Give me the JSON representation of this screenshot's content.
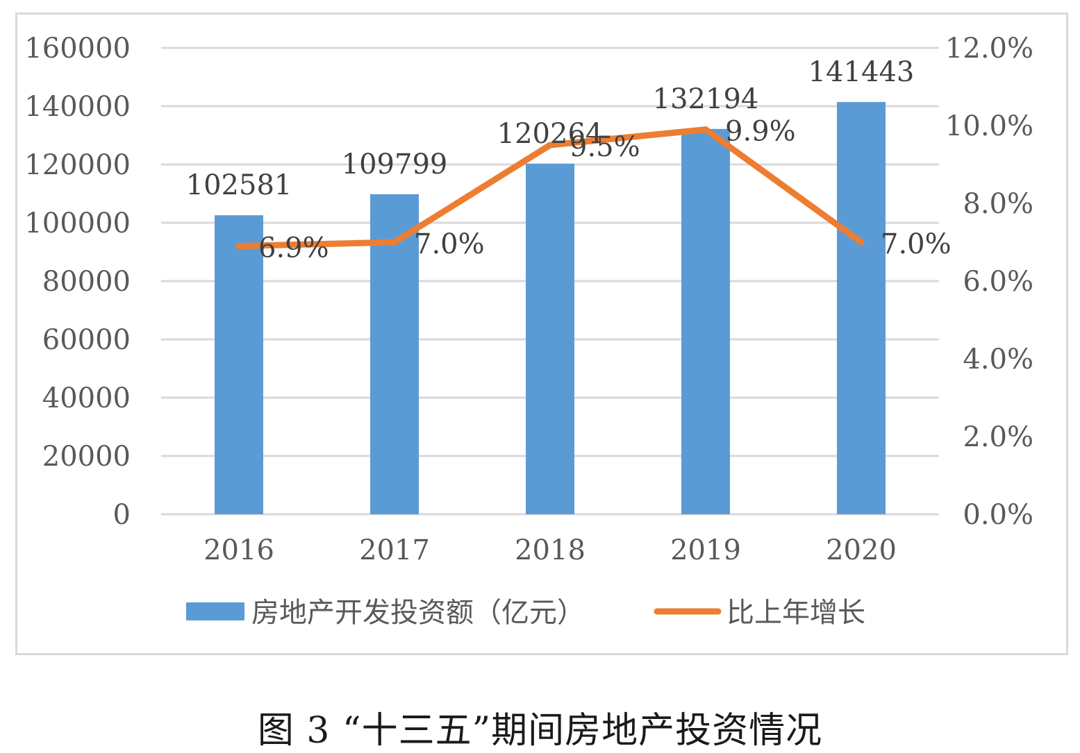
{
  "caption": "图 3 “十三五”期间房地产投资情况",
  "colors": {
    "bar": "#5b9bd5",
    "line": "#ed7d31",
    "grid": "#d9d9d9",
    "frame": "#d9d9d9"
  },
  "chart_data": {
    "type": "bar",
    "categories": [
      "2016",
      "2017",
      "2018",
      "2019",
      "2020"
    ],
    "series": [
      {
        "name": "房地产开发投资额（亿元）",
        "type": "bar",
        "axis": "left",
        "values": [
          102581,
          109799,
          120264,
          132194,
          141443
        ],
        "labels": [
          "102581",
          "109799",
          "120264",
          "132194",
          "141443"
        ]
      },
      {
        "name": "比上年增长",
        "type": "line",
        "axis": "right",
        "values": [
          6.9,
          7.0,
          9.5,
          9.9,
          7.0
        ],
        "labels": [
          "6.9%",
          "7.0%",
          "9.5%",
          "9.9%",
          "7.0%"
        ]
      }
    ],
    "y_left": {
      "min": 0,
      "max": 160000,
      "ticks": [
        "0",
        "20000",
        "40000",
        "60000",
        "80000",
        "100000",
        "120000",
        "140000",
        "160000"
      ]
    },
    "y_right": {
      "min": 0,
      "max": 12,
      "ticks": [
        "0.0%",
        "2.0%",
        "4.0%",
        "6.0%",
        "8.0%",
        "10.0%",
        "12.0%"
      ]
    },
    "grid": true,
    "legend": "bottom"
  }
}
